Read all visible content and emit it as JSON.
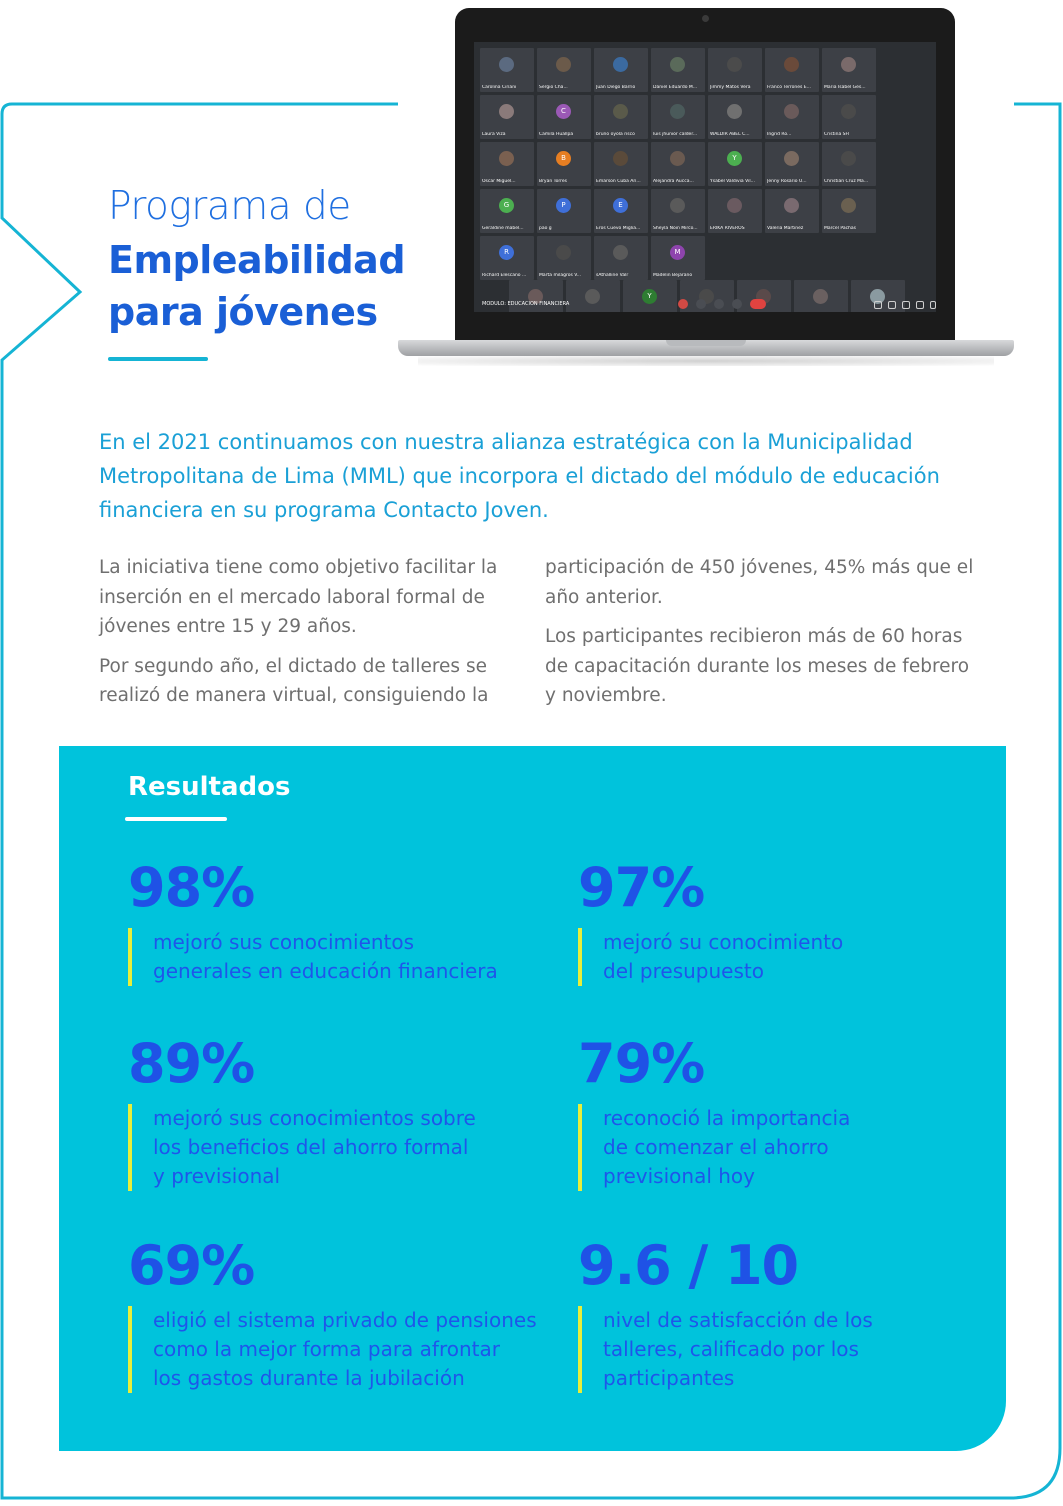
{
  "title": {
    "line1": "Programa de",
    "line2": "Empleabilidad",
    "line3": "para jóvenes"
  },
  "laptop": {
    "module_label": "MODULO: EDUCACION FINANCIERA",
    "participants": [
      {
        "name": "Carolina Ciriani",
        "initial": "",
        "color": "#5b6a80"
      },
      {
        "name": "Sergio Cha...",
        "initial": "",
        "color": "#6b5a4a"
      },
      {
        "name": "Juan Diego Barrio",
        "initial": "",
        "color": "#3b6aa0"
      },
      {
        "name": "Daniel Eduardo M...",
        "initial": "",
        "color": "#5a6a5a"
      },
      {
        "name": "Jimmy Matos Vera",
        "initial": "",
        "color": "#4b4b4b"
      },
      {
        "name": "Franco Terrones E...",
        "initial": "",
        "color": "#6a4a3a"
      },
      {
        "name": "Maria Isabel Ges...",
        "initial": "",
        "color": "#7a6a6a"
      },
      {
        "name": "Laura Viza",
        "initial": "",
        "color": "#8a7a7a"
      },
      {
        "name": "Camila Huallpa",
        "initial": "C",
        "color": "#9b59b6"
      },
      {
        "name": "bruno oyola risco",
        "initial": "",
        "color": "#5a5a4a"
      },
      {
        "name": "luis jhunior calder...",
        "initial": "",
        "color": "#4a5a5a"
      },
      {
        "name": "WALDIR ABEL C...",
        "initial": "",
        "color": "#707070"
      },
      {
        "name": "Ingrid Ro...",
        "initial": "",
        "color": "#6a5a5a"
      },
      {
        "name": "Cristina SH",
        "initial": "",
        "color": "#4a4a4a"
      },
      {
        "name": "Oscar Miguel...",
        "initial": "",
        "color": "#7a6050"
      },
      {
        "name": "Bryan Torres",
        "initial": "B",
        "color": "#e67e22"
      },
      {
        "name": "Emarson Cuba Ari...",
        "initial": "",
        "color": "#5a4a3a"
      },
      {
        "name": "Alejandra Aucca...",
        "initial": "",
        "color": "#6a5a50"
      },
      {
        "name": "Ysabel Valdivia Vil...",
        "initial": "Y",
        "color": "#4caf50"
      },
      {
        "name": "Jenny Rosario U...",
        "initial": "",
        "color": "#7a6a60"
      },
      {
        "name": "Christian Cruz Ma...",
        "initial": "",
        "color": "#4a4a4a"
      },
      {
        "name": "Geraldine mabel...",
        "initial": "G",
        "color": "#4caf50"
      },
      {
        "name": "pao g",
        "initial": "P",
        "color": "#3f6fd8"
      },
      {
        "name": "Eros Cuevo Miglia...",
        "initial": "E",
        "color": "#3f6fd8"
      },
      {
        "name": "Sheyla Noin Mirco...",
        "initial": "",
        "color": "#5a5a5a"
      },
      {
        "name": "ERIKA RIVEROS",
        "initial": "",
        "color": "#6a5a60"
      },
      {
        "name": "Valeria Martinez",
        "initial": "",
        "color": "#7a6a70"
      },
      {
        "name": "Marcel Pachas",
        "initial": "",
        "color": "#6a6050"
      },
      {
        "name": "Richard Elescano ...",
        "initial": "R",
        "color": "#3f6fd8"
      },
      {
        "name": "Marta milagros V...",
        "initial": "",
        "color": "#4a4a4a"
      },
      {
        "name": "sAthaIline Valr",
        "initial": "",
        "color": "#5a5a5a"
      },
      {
        "name": "Madelin Bejarano",
        "initial": "M",
        "color": "#8e44ad"
      }
    ],
    "bottom_participants": [
      {
        "name": "Janina Gutierrez",
        "initial": "",
        "color": "#6a5a5a"
      },
      {
        "name": "Alessandra B. Sala...",
        "initial": "",
        "color": "#5a5a5a"
      },
      {
        "name": "Yuliza Carrasco S...",
        "initial": "Y",
        "color": "#2e7d32"
      },
      {
        "name": "Fredy Corna Espir...",
        "initial": "",
        "color": "#4a4a4a"
      },
      {
        "name": "kevin perez ledes...",
        "initial": "",
        "color": "#5a4a4a"
      },
      {
        "name": "Frank Mori Cos...",
        "initial": "",
        "color": "#6a6060"
      },
      {
        "name": "",
        "initial": "",
        "color": "#8a9aa0"
      }
    ]
  },
  "intro": "En el 2021 continuamos con nuestra alianza estratégica con la Municipalidad Metropolitana de Lima (MML) que incorpora el dictado del módulo de educación financiera en su programa Contacto Joven.",
  "body": {
    "left_p1": "La iniciativa tiene como objetivo facilitar la inserción en el mercado laboral formal de jóvenes entre 15 y 29 años.",
    "left_p2": "Por segundo año, el dictado de talleres se realizó de manera virtual, consiguiendo la",
    "right_p1": "participación de 450 jóvenes, 45% más que el año anterior.",
    "right_p2": "Los participantes recibieron más de 60 horas de capacitación durante los meses de febrero y noviembre."
  },
  "results": {
    "title": "Resultados",
    "stats": [
      {
        "value": "98%",
        "desc": "mejoró sus conocimientos\ngenerales en educación financiera"
      },
      {
        "value": "97%",
        "desc": "mejoró su conocimiento\ndel presupuesto"
      },
      {
        "value": "89%",
        "desc": "mejoró sus conocimientos sobre\nlos beneficios del ahorro formal\ny previsional"
      },
      {
        "value": "79%",
        "desc": "reconoció la importancia\nde comenzar el ahorro\nprevisional hoy"
      },
      {
        "value": "69%",
        "desc": "eligió el sistema privado de pensiones\ncomo la mejor forma para afrontar\nlos gastos durante la jubilación"
      },
      {
        "value": "9.6 / 10",
        "desc": "nivel de satisfacción de los\ntalleres, calificado por los\nparticipantes"
      }
    ]
  },
  "colors": {
    "accent_blue": "#1a5fd6",
    "cyan": "#00c3dc",
    "frame": "#15b4d4",
    "highlight_yellow": "#e7ee3b"
  }
}
